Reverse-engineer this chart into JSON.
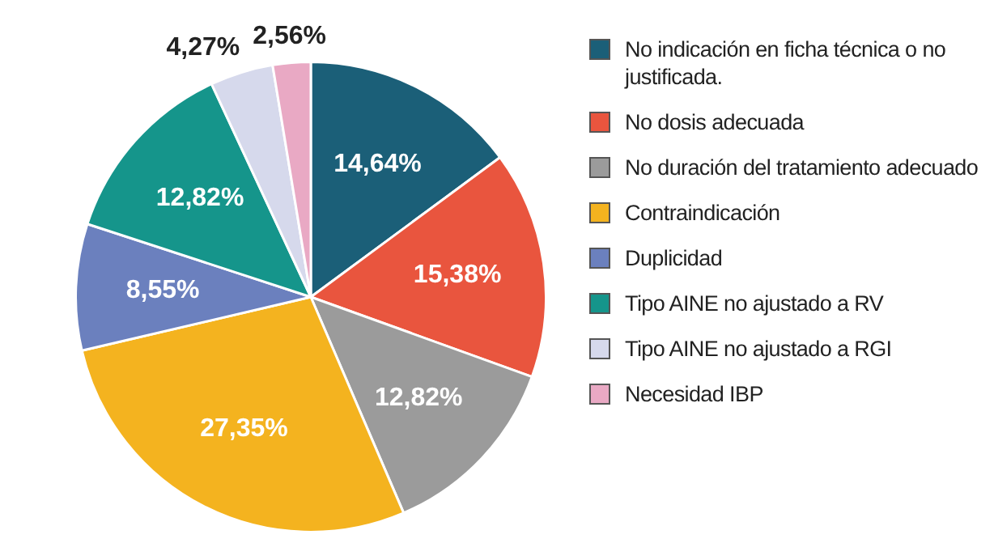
{
  "chart_data": {
    "type": "pie",
    "categories": [
      "No indicación en ficha técnica o no justificada.",
      "No dosis adecuada",
      "No duración del tratamiento adecuado",
      "Contraindicación",
      "Duplicidad",
      "Tipo AINE no ajustado a RV",
      "Tipo AINE no ajustado a RGI",
      "Necesidad IBP"
    ],
    "values": [
      14.64,
      15.38,
      12.82,
      27.35,
      8.55,
      12.82,
      4.27,
      2.56
    ],
    "value_labels": [
      "14,64%",
      "15,38%",
      "12,82%",
      "27,35%",
      "8,55%",
      "12,82%",
      "4,27%",
      "2,56%"
    ],
    "colors": [
      "#1b5f78",
      "#e9553e",
      "#9b9b9b",
      "#f4b31f",
      "#6b80be",
      "#15958b",
      "#d6d9ec",
      "#e9a9c4"
    ],
    "legend": "right"
  }
}
